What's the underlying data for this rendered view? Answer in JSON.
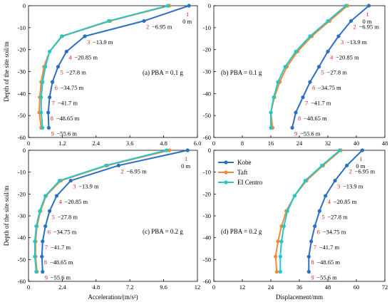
{
  "colors": {
    "kobe": "#2a6fc4",
    "taft": "#f08a3a",
    "elcentro": "#26c6c6",
    "point_number": "#e0201b"
  },
  "legend": {
    "entries": [
      "Kobe",
      "Taft",
      "EI Centro"
    ],
    "placement": "top-left of panel (d)"
  },
  "chart_data": [
    {
      "type": "line",
      "panel_label": "(a)  PBA = 0.1 g",
      "xlim": [
        0,
        6.0
      ],
      "xticks": [
        "0",
        "1.2",
        "2.4",
        "3.6",
        "4.8",
        "6.0"
      ],
      "ylim": [
        -60,
        0
      ],
      "yticks": [
        "0",
        "-10",
        "-20",
        "-30",
        "-40",
        "-50",
        "-60"
      ],
      "ylabel": "Depth of the site soil/m",
      "xlabel": "",
      "grid": false,
      "depth_labels": [
        "1",
        "0 m",
        "2",
        "−6.95 m",
        "3",
        "−13.9 m",
        "4",
        "−20.85 m",
        "5",
        "−27.8 m",
        "6",
        "−34.75 m",
        "7",
        "−41.7 m",
        "8",
        "−48.65 m",
        "9",
        "−55.6 m"
      ],
      "y": [
        0,
        -6.95,
        -13.9,
        -20.85,
        -27.8,
        -34.75,
        -41.7,
        -48.65,
        -55.6
      ],
      "series": [
        {
          "name": "Kobe",
          "x": [
            5.7,
            4.1,
            2.0,
            1.35,
            1.05,
            0.85,
            0.75,
            0.7,
            0.72
          ]
        },
        {
          "name": "Taft",
          "x": [
            5.0,
            2.9,
            1.2,
            0.75,
            0.55,
            0.45,
            0.4,
            0.38,
            0.45
          ]
        },
        {
          "name": "EI Centro",
          "x": [
            4.95,
            2.85,
            1.18,
            0.75,
            0.6,
            0.5,
            0.45,
            0.45,
            0.5
          ]
        }
      ]
    },
    {
      "type": "line",
      "panel_label": "(b)  PBA = 0.1 g",
      "xlim": [
        0,
        48
      ],
      "xticks": [
        "0",
        "8",
        "16",
        "24",
        "32",
        "40",
        "48"
      ],
      "ylim": [
        -60,
        0
      ],
      "yticks": [
        "0",
        "-10",
        "-20",
        "-30",
        "-40",
        "-50",
        "-60"
      ],
      "ylabel": "",
      "xlabel": "",
      "grid": false,
      "depth_labels": [
        "1",
        "0 m",
        "2",
        "−6.95 m",
        "3",
        "−13.9 m",
        "4",
        "−20.85 m",
        "5",
        "−27.8 m",
        "6",
        "−34.75 m",
        "7",
        "−41.7 m",
        "8",
        "−48.65 m",
        "9",
        "−55.6 m"
      ],
      "y": [
        0,
        -6.95,
        -13.9,
        -20.85,
        -27.8,
        -34.75,
        -41.7,
        -48.65,
        -55.6
      ],
      "series": [
        {
          "name": "Kobe",
          "x": [
            43.5,
            38.5,
            35.0,
            32.0,
            29.5,
            27.0,
            25.0,
            23.0,
            22.0
          ]
        },
        {
          "name": "Taft",
          "x": [
            37.5,
            32.5,
            27.5,
            23.5,
            20.5,
            18.5,
            17.0,
            16.0,
            16.5
          ]
        },
        {
          "name": "EI Centro",
          "x": [
            37.0,
            32.0,
            27.0,
            23.0,
            20.0,
            18.0,
            16.8,
            16.0,
            16.0
          ]
        }
      ]
    },
    {
      "type": "line",
      "panel_label": "(c)  PBA = 0.2 g",
      "xlim": [
        0,
        12
      ],
      "xticks": [
        "0",
        "2.4",
        "4.8",
        "7.2",
        "9.6",
        "12"
      ],
      "ylim": [
        -60,
        0
      ],
      "yticks": [
        "0",
        "-10",
        "-20",
        "-30",
        "-40",
        "-50",
        "-60"
      ],
      "ylabel": "Depth of the site soil/m",
      "xlabel": "Acceleration/(m/s²)",
      "grid": false,
      "depth_labels": [
        "1",
        "0 m",
        "2",
        "−6.95 m",
        "3",
        "−13.9 m",
        "4",
        "−20.85 m",
        "5",
        "−27.8 m",
        "6",
        "−34.75 m",
        "7",
        "−41.7 m",
        "8",
        "−48.65 m",
        "9",
        "−55.6 m"
      ],
      "y": [
        0,
        -6.95,
        -13.9,
        -20.85,
        -27.8,
        -34.75,
        -41.7,
        -48.65,
        -55.6
      ],
      "series": [
        {
          "name": "Kobe",
          "x": [
            11.3,
            6.4,
            3.0,
            2.0,
            1.5,
            1.2,
            1.0,
            0.95,
            1.0
          ]
        },
        {
          "name": "Taft",
          "x": [
            10.0,
            5.6,
            2.3,
            1.25,
            0.85,
            0.6,
            0.5,
            0.5,
            0.6
          ]
        },
        {
          "name": "EI Centro",
          "x": [
            9.8,
            5.5,
            2.2,
            1.2,
            0.8,
            0.55,
            0.45,
            0.45,
            0.55
          ]
        }
      ]
    },
    {
      "type": "line",
      "panel_label": "(d)  PBA = 0.2 g",
      "xlim": [
        0,
        72
      ],
      "xticks": [
        "0",
        "12",
        "24",
        "36",
        "48",
        "60",
        "72"
      ],
      "ylim": [
        -60,
        0
      ],
      "yticks": [
        "0",
        "-10",
        "-20",
        "-30",
        "-40",
        "-50",
        "-60"
      ],
      "ylabel": "",
      "xlabel": "Displacement/mm",
      "grid": false,
      "depth_labels": [
        "1",
        "0 m",
        "2",
        "−6.95 m",
        "3",
        "−13.9 m",
        "4",
        "−20.85 m",
        "5",
        "−27.8 m",
        "6",
        "−34.75 m",
        "7",
        "−41.7 m",
        "8",
        "−48.65 m",
        "9",
        "−55.6 m"
      ],
      "y": [
        0,
        -6.95,
        -13.9,
        -20.85,
        -27.8,
        -34.75,
        -41.7,
        -48.65,
        -55.6
      ],
      "series": [
        {
          "name": "Kobe",
          "x": [
            62.5,
            56.0,
            51.0,
            47.0,
            44.5,
            42.5,
            41.0,
            40.0,
            40.0
          ]
        },
        {
          "name": "Taft",
          "x": [
            53.5,
            46.0,
            39.0,
            34.0,
            30.5,
            28.5,
            27.0,
            26.0,
            26.5
          ]
        },
        {
          "name": "EI Centro",
          "x": [
            53.0,
            45.5,
            38.5,
            34.0,
            31.0,
            29.5,
            28.5,
            28.0,
            28.0
          ]
        }
      ]
    }
  ]
}
